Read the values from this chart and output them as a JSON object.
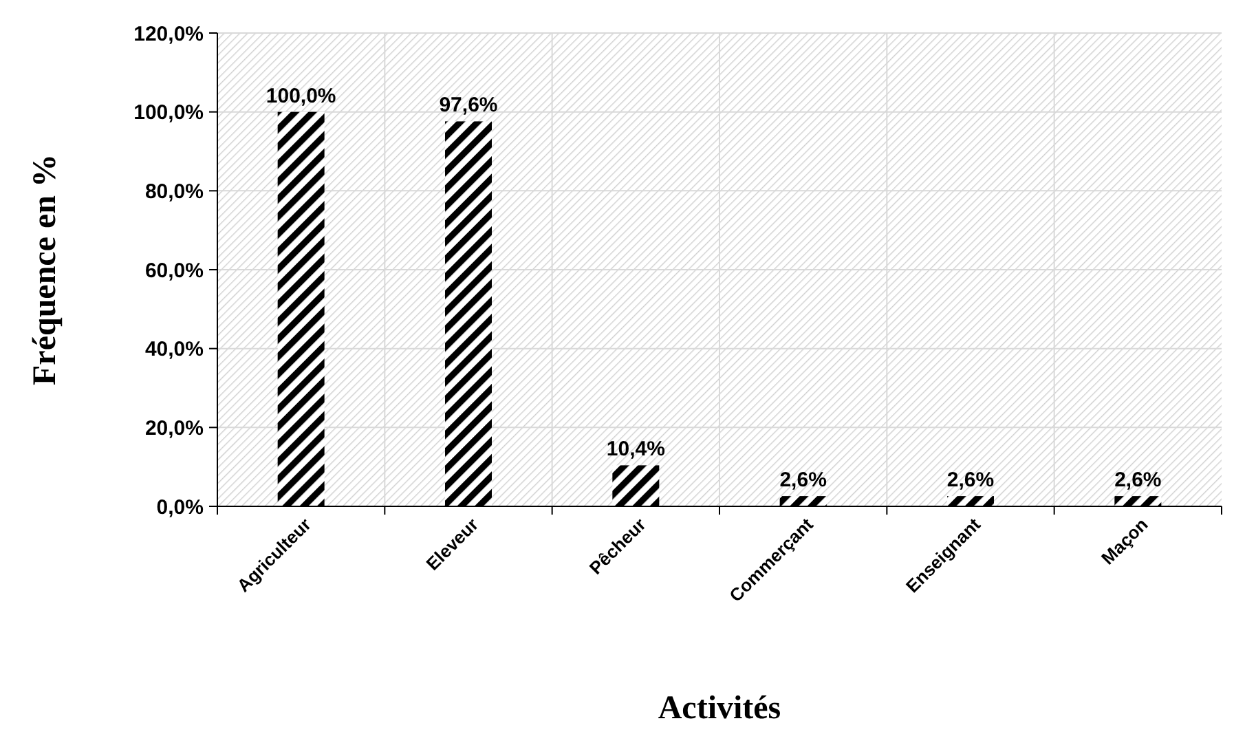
{
  "chart_data": {
    "type": "bar",
    "xlabel": "Activités",
    "ylabel": "Fréquence en %",
    "categories": [
      "Agriculteur",
      "Eleveur",
      "Pêcheur",
      "Commerçant",
      "Enseignant",
      "Maçon"
    ],
    "values": [
      100,
      97.6,
      10.4,
      2.6,
      2.6,
      2.6
    ],
    "value_labels": [
      "100,0%",
      "97,6%",
      "10,4%",
      "2,6%",
      "2,6%",
      "2,6%"
    ],
    "color": "#000000",
    "ylim": [
      0,
      120
    ],
    "yticks": [
      {
        "value": 0,
        "label": "0,0%"
      },
      {
        "value": 20,
        "label": "20,0%"
      },
      {
        "value": 40,
        "label": "40,0%"
      },
      {
        "value": 60,
        "label": "60,0%"
      },
      {
        "value": 80,
        "label": "80,0%"
      },
      {
        "value": 100,
        "label": "100,0%"
      },
      {
        "value": 120,
        "label": "120,0%"
      }
    ],
    "grid": true
  }
}
